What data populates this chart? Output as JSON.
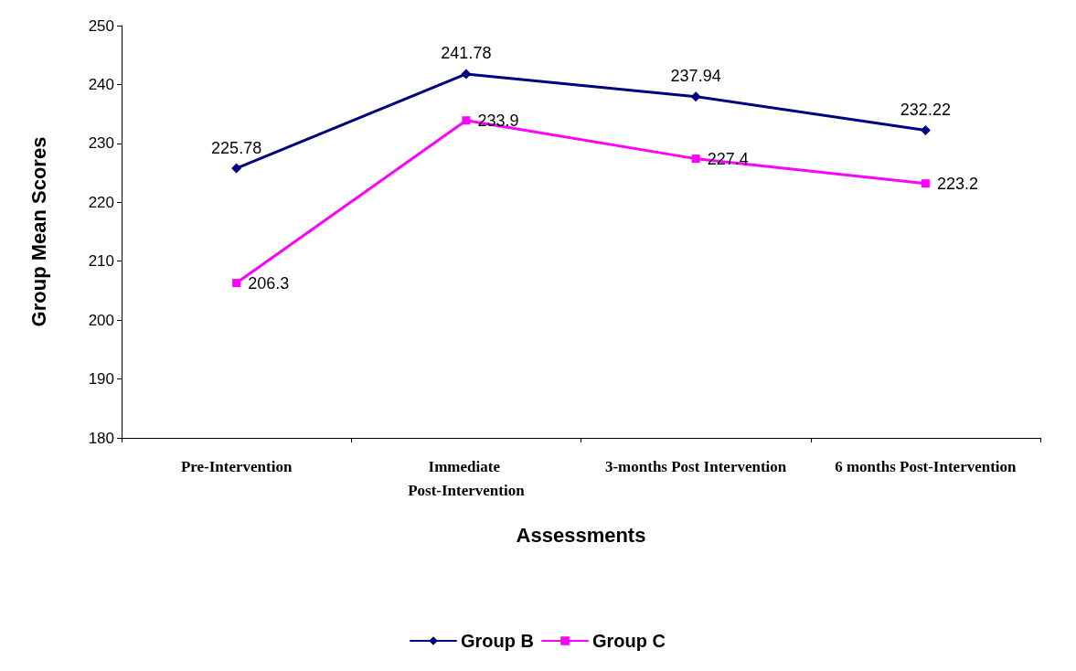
{
  "chart_data": {
    "type": "line",
    "xlabel": "Assessments",
    "ylabel": "Group Mean Scores",
    "categories": [
      "Pre-Intervention",
      "Immediate Post-Intervention",
      "3-months Post Intervention",
      "6 months Post-Intervention"
    ],
    "series": [
      {
        "name": "Group B",
        "color": "#000080",
        "marker": "diamond",
        "values": [
          225.78,
          241.78,
          237.94,
          232.22
        ]
      },
      {
        "name": "Group C",
        "color": "#ff00ff",
        "marker": "square",
        "values": [
          206.3,
          233.9,
          227.4,
          223.2
        ]
      }
    ],
    "ylim": [
      180,
      250
    ],
    "yticks": [
      180,
      190,
      200,
      210,
      220,
      230,
      240,
      250
    ],
    "data_labels": true,
    "grid": false,
    "legend": "bottom",
    "line_style": "solid"
  }
}
